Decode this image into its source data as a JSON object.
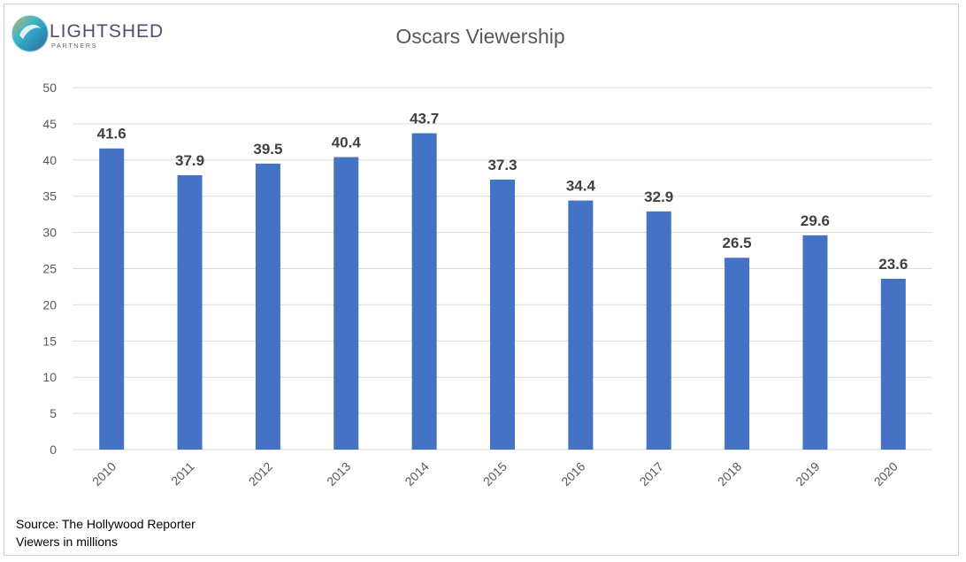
{
  "logo": {
    "word_light": "LIGHT",
    "word_shed": "SHED",
    "sub": "PARTNERS"
  },
  "footnotes": {
    "source": "Source: The Hollywood Reporter",
    "units": "Viewers in millions"
  },
  "colors": {
    "bar": "#4472C4",
    "grid": "#d9d9d9",
    "axis_text": "#595959",
    "label_text": "#404040"
  },
  "chart_data": {
    "type": "bar",
    "title": "Oscars Viewership",
    "xlabel": "",
    "ylabel": "",
    "categories": [
      "2010",
      "2011",
      "2012",
      "2013",
      "2014",
      "2015",
      "2016",
      "2017",
      "2018",
      "2019",
      "2020"
    ],
    "values": [
      41.6,
      37.9,
      39.5,
      40.4,
      43.7,
      37.3,
      34.4,
      32.9,
      26.5,
      29.6,
      23.6
    ],
    "data_labels": [
      "41.6",
      "37.9",
      "39.5",
      "40.4",
      "43.7",
      "37.3",
      "34.4",
      "32.9",
      "26.5",
      "29.6",
      "23.6"
    ],
    "ylim": [
      0,
      50
    ],
    "yticks": [
      0,
      5,
      10,
      15,
      20,
      25,
      30,
      35,
      40,
      45,
      50
    ],
    "grid": true,
    "legend": "none"
  }
}
